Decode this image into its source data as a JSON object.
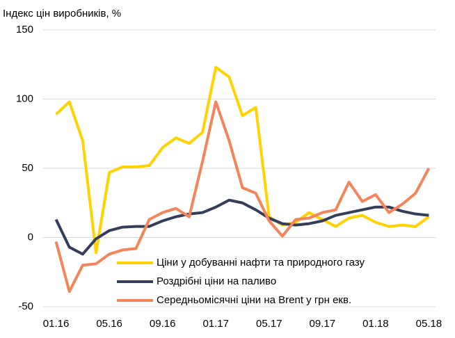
{
  "chart_data": {
    "type": "line",
    "title": "Індекс цін виробників, %",
    "categories": [
      "01.16",
      null,
      null,
      null,
      "05.16",
      null,
      null,
      null,
      "09.16",
      null,
      null,
      null,
      "01.17",
      null,
      null,
      null,
      "05.17",
      null,
      null,
      null,
      "09.17",
      null,
      null,
      null,
      "01.18",
      null,
      null,
      null,
      "05.18"
    ],
    "series": [
      {
        "name": "Ціни у добуванні нафти та природного газу",
        "color": "#ffd200",
        "values": [
          89,
          98,
          70,
          -11,
          47,
          51,
          51,
          52,
          65,
          72,
          68,
          76,
          123,
          116,
          88,
          94,
          15,
          9,
          11,
          18,
          13,
          8,
          14,
          16,
          11,
          8,
          9,
          8,
          15
        ]
      },
      {
        "name": "Роздрібні ціни на паливо",
        "color": "#323e5c",
        "values": [
          13,
          -7,
          -12,
          -1,
          5,
          7.5,
          8,
          8,
          12,
          15,
          17,
          18,
          22,
          27,
          25,
          20,
          14,
          10,
          9,
          10,
          12,
          16,
          18,
          20,
          22,
          22,
          19,
          17,
          16
        ]
      },
      {
        "name": "Середньомісячні ціни на Brent у грн екв.",
        "color": "#f4845a",
        "values": [
          -3,
          -39,
          -20,
          -19,
          -12,
          -9,
          -8,
          13,
          18,
          21,
          15,
          55,
          98,
          70,
          36,
          32,
          12,
          1,
          13,
          14,
          18,
          20,
          40,
          26,
          31,
          18,
          24,
          32,
          50
        ]
      }
    ],
    "ylim": [
      -50,
      150
    ],
    "yticks": [
      -50,
      0,
      50,
      100,
      150
    ],
    "grid": true
  }
}
